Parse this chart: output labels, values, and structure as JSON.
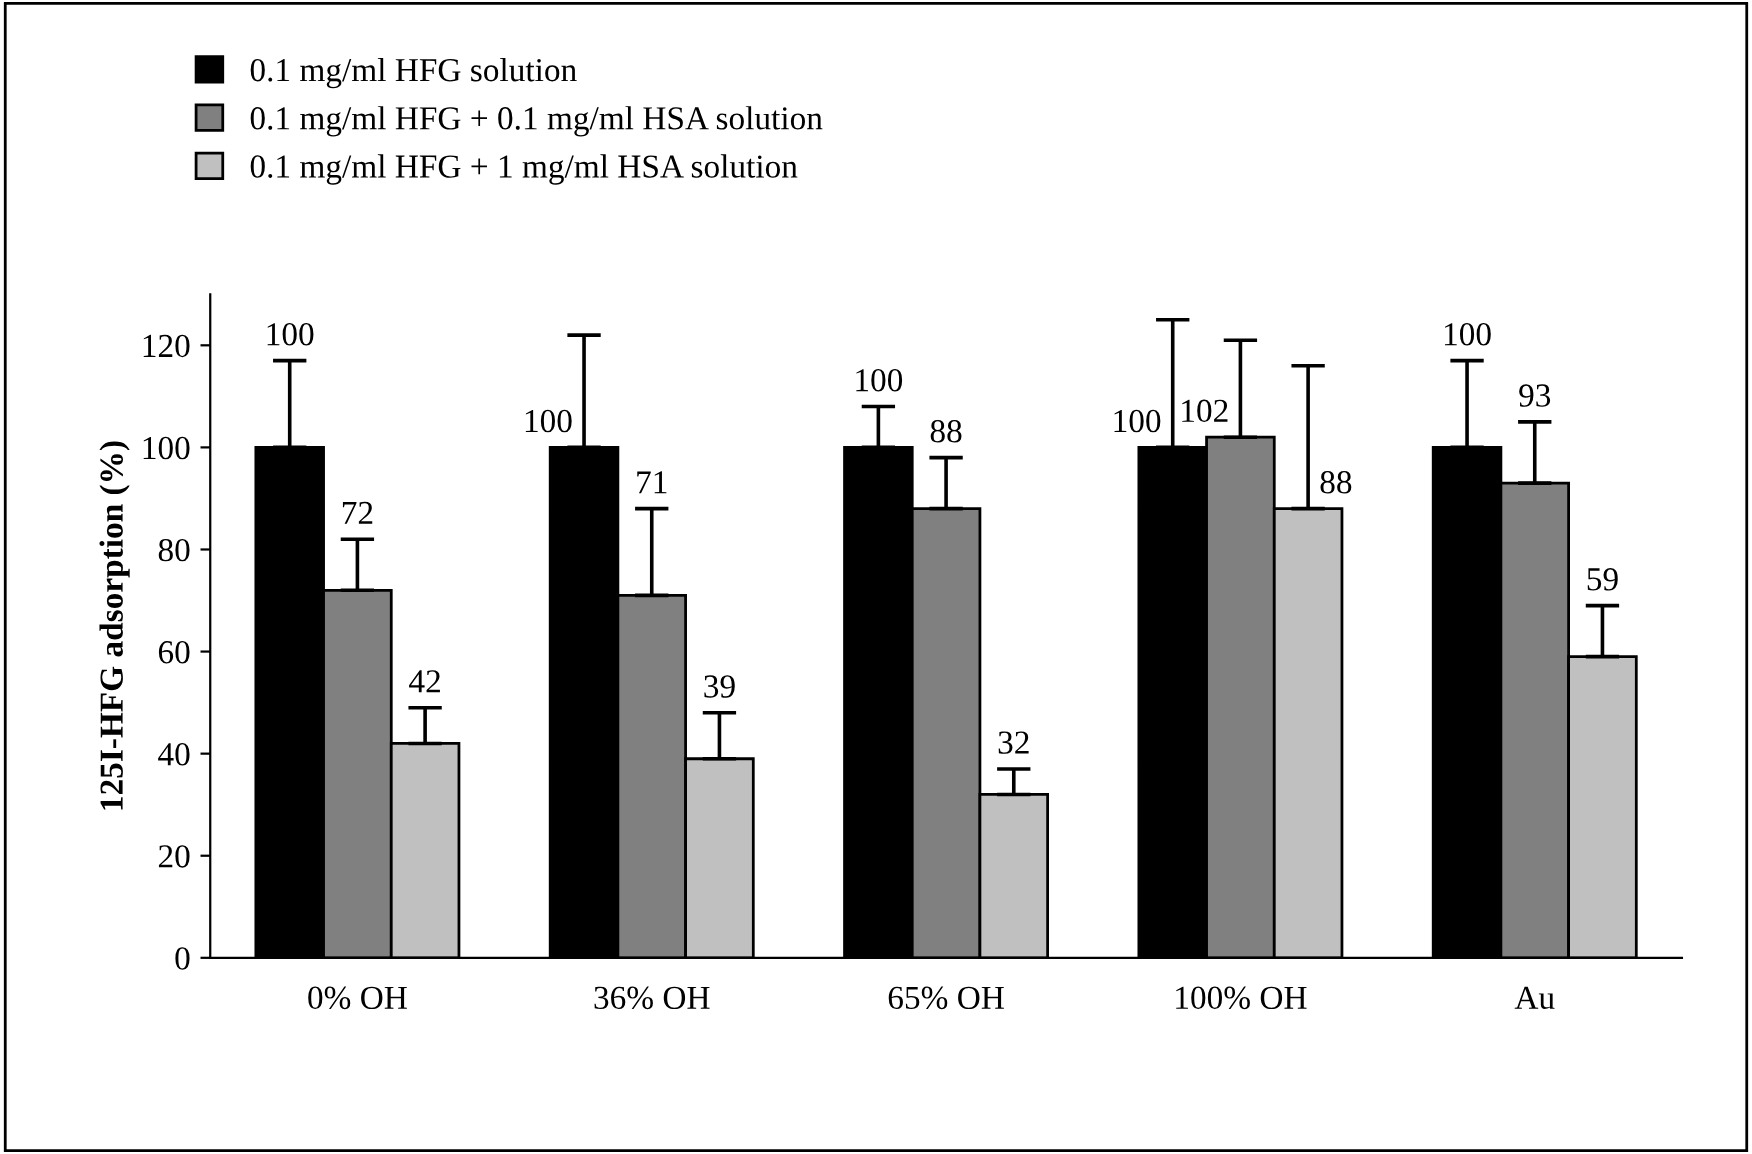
{
  "chart_data": {
    "type": "bar",
    "ylabel": "125I-HFG adsorption (%)",
    "categories": [
      "0% OH",
      "36% OH",
      "65% OH",
      "100% OH",
      "Au"
    ],
    "series": [
      {
        "name": "0.1 mg/ml HFG solution",
        "color": "#000000",
        "values": [
          100,
          100,
          100,
          100,
          100
        ],
        "errors": [
          [
            100,
            117
          ],
          [
            100,
            122
          ],
          [
            100,
            108
          ],
          [
            100,
            125
          ],
          [
            100,
            117
          ]
        ]
      },
      {
        "name": "0.1 mg/ml HFG + 0.1 mg/ml HSA solution",
        "color": "#808080",
        "values": [
          72,
          71,
          88,
          102,
          93
        ],
        "errors": [
          [
            72,
            82
          ],
          [
            71,
            88
          ],
          [
            88,
            98
          ],
          [
            102,
            121
          ],
          [
            93,
            105
          ]
        ]
      },
      {
        "name": "0.1 mg/ml HFG + 1 mg/ml HSA solution",
        "color": "#c0c0c0",
        "values": [
          42,
          39,
          32,
          88,
          59
        ],
        "errors": [
          [
            42,
            49
          ],
          [
            39,
            48
          ],
          [
            32,
            37
          ],
          [
            88,
            116
          ],
          [
            59,
            69
          ]
        ]
      }
    ],
    "ylim": [
      0,
      130
    ],
    "yticks": [
      0,
      20,
      40,
      60,
      80,
      100,
      120
    ],
    "data_labels": true,
    "grid": false,
    "legend": "top left"
  }
}
